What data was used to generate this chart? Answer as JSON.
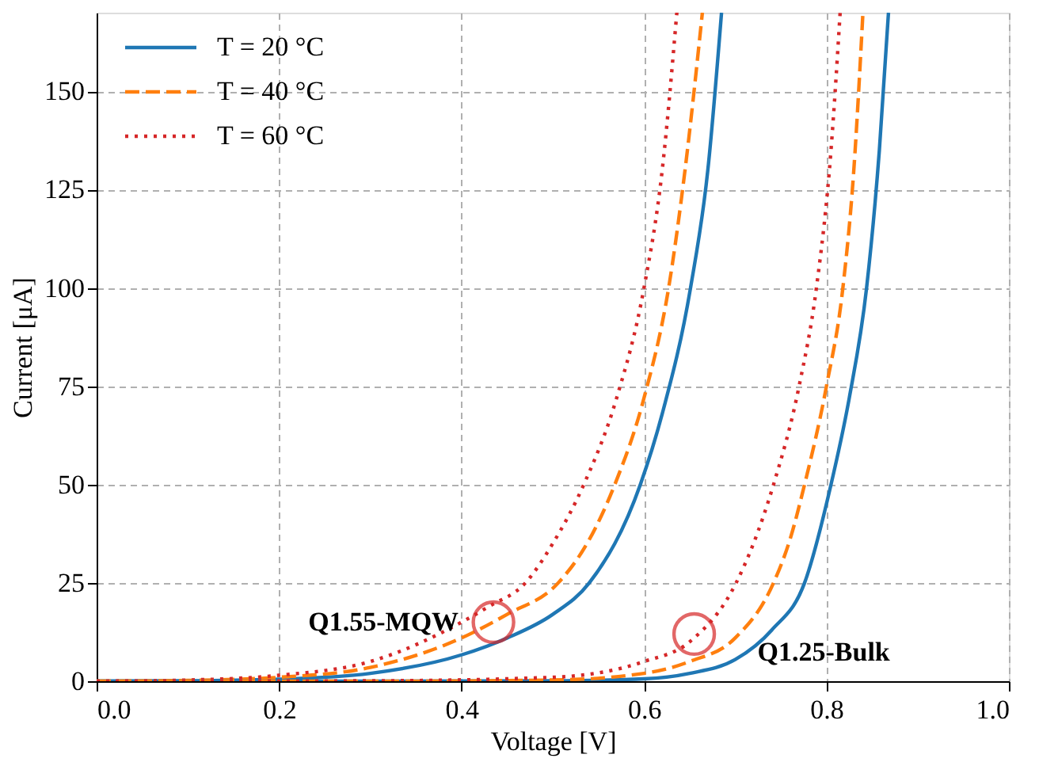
{
  "chart_data": {
    "type": "line",
    "xlabel": "Voltage [V]",
    "ylabel": "Current [μA]",
    "xlim": [
      0,
      1
    ],
    "xticks": [
      {
        "value": 0,
        "label": "0.0"
      },
      0.2,
      0.4,
      0.6,
      0.8,
      {
        "value": 1,
        "label": "1.0"
      }
    ],
    "ylim": [
      0,
      170
    ],
    "yticks": [
      0,
      25,
      50,
      75,
      100,
      125,
      150
    ],
    "grid": true,
    "legend": "top left",
    "marker": "none",
    "series": [
      {
        "name": "T = 20 °C",
        "color": "#1f77b4",
        "line_style": "solid",
        "x": [
          0,
          0.1,
          0.2,
          0.3,
          0.4,
          0.45,
          0.5,
          0.54,
          0.596,
          0.62,
          0.651,
          0.67,
          0.685
        ],
        "values": [
          0,
          0.1,
          0.5,
          2,
          6.7,
          11,
          17,
          25,
          50,
          68,
          100,
          130,
          170
        ]
      },
      {
        "name": "T = 40 °C",
        "color": "#ff7f0e",
        "line_style": "dashed",
        "x": [
          0,
          0.1,
          0.2,
          0.3,
          0.4,
          0.45,
          0.506,
          0.54,
          0.568,
          0.6,
          0.627,
          0.645,
          0.664
        ],
        "values": [
          0,
          0.2,
          1,
          3.5,
          11,
          17,
          25,
          36,
          50,
          72,
          100,
          130,
          170
        ]
      },
      {
        "name": "T = 60 °C",
        "color": "#d62728",
        "line_style": "dotted",
        "x": [
          0,
          0.1,
          0.2,
          0.3,
          0.4,
          0.43,
          0.47,
          0.5,
          0.534,
          0.57,
          0.6,
          0.62,
          0.636
        ],
        "values": [
          0,
          0.3,
          1.5,
          5,
          15,
          19,
          25,
          35,
          50,
          72,
          100,
          130,
          170
        ]
      },
      {
        "color": "#1f77b4",
        "line_style": "solid",
        "x": [
          0,
          0.3,
          0.5,
          0.6,
          0.65,
          0.7,
          0.74,
          0.776,
          0.805,
          0.825,
          0.844,
          0.858,
          0.868
        ],
        "values": [
          0,
          0,
          0.1,
          0.6,
          2,
          5.5,
          13,
          25,
          50,
          72,
          100,
          135,
          170
        ]
      },
      {
        "color": "#ff7f0e",
        "line_style": "dashed",
        "x": [
          0,
          0.3,
          0.5,
          0.6,
          0.65,
          0.7,
          0.742,
          0.76,
          0.776,
          0.8,
          0.818,
          0.83,
          0.84
        ],
        "values": [
          0,
          0,
          0.3,
          2,
          5,
          11,
          25,
          36,
          50,
          75,
          100,
          130,
          170
        ]
      },
      {
        "color": "#d62728",
        "line_style": "dotted",
        "x": [
          0,
          0.3,
          0.5,
          0.6,
          0.65,
          0.701,
          0.72,
          0.742,
          0.77,
          0.789,
          0.805,
          0.815
        ],
        "values": [
          0,
          0.1,
          1,
          5,
          10,
          25,
          35,
          50,
          75,
          100,
          135,
          170
        ]
      }
    ],
    "annotations": [
      {
        "text": "Q1.55-MQW",
        "x": 0.435,
        "y": 15
      },
      {
        "text": "Q1.25-Bulk",
        "x": 0.655,
        "y": 12
      }
    ]
  }
}
